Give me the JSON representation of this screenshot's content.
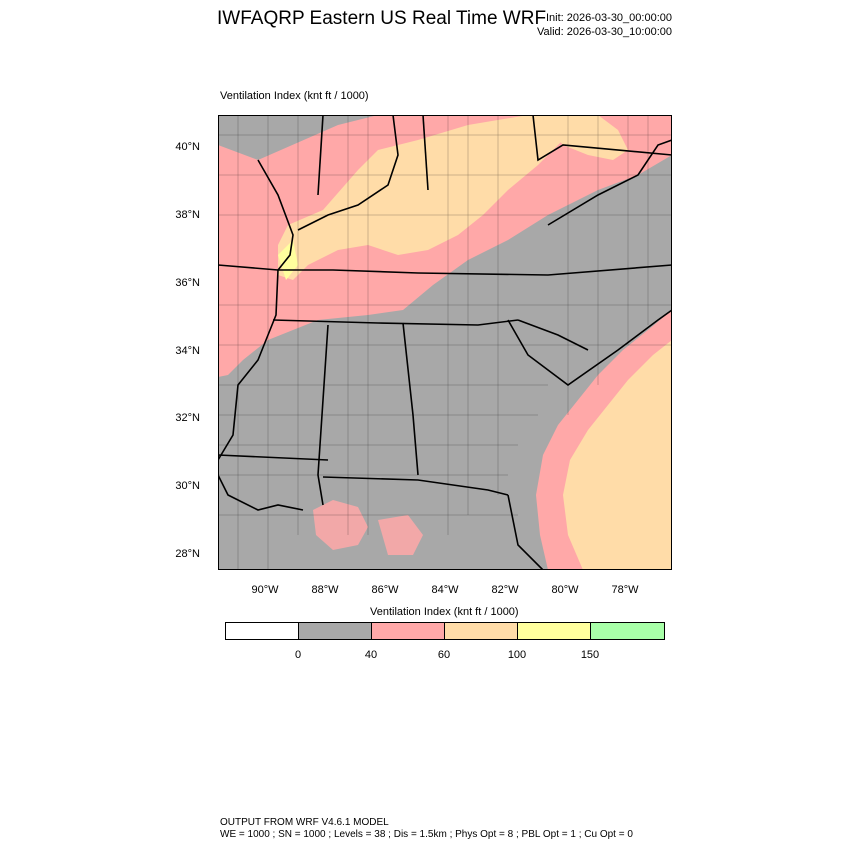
{
  "header": {
    "title": "IWFAQRP Eastern US Real Time WRF",
    "init": "Init: 2026-03-30_00:00:00",
    "valid": "Valid: 2026-03-30_10:00:00"
  },
  "map": {
    "field_label": "Ventilation Index   (knt ft / 1000)",
    "lat_labels": [
      "40°N",
      "38°N",
      "36°N",
      "34°N",
      "32°N",
      "30°N",
      "28°N"
    ],
    "lon_labels": [
      "90°W",
      "88°W",
      "86°W",
      "84°W",
      "82°W",
      "80°W",
      "78°W"
    ],
    "colors": {
      "gray": "#a8a8a8",
      "pink": "#ffa8a8",
      "tan": "#ffdca8",
      "yellow": "#ffff9e",
      "green": "#a8ffa8"
    }
  },
  "colorbar": {
    "title": "Ventilation Index  (knt ft / 1000)",
    "segments": [
      {
        "color": "#ffffff"
      },
      {
        "color": "#a8a8a8"
      },
      {
        "color": "#ffa8a8"
      },
      {
        "color": "#ffdca8"
      },
      {
        "color": "#ffff9e"
      },
      {
        "color": "#a8ffa8"
      }
    ],
    "ticks": [
      "0",
      "40",
      "60",
      "100",
      "150"
    ]
  },
  "footer": {
    "line1": "OUTPUT FROM WRF V4.6.1 MODEL",
    "line2": "WE = 1000 ; SN = 1000 ; Levels = 38 ; Dis = 1.5km ; Phys Opt = 8 ; PBL Opt = 1 ; Cu Opt = 0"
  }
}
